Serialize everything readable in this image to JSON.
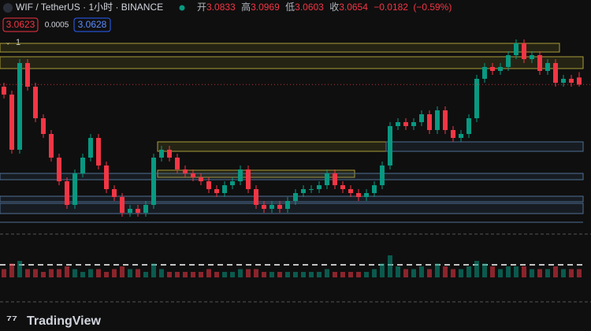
{
  "header": {
    "symbol": "WIF / TetherUS · 1小时 · BINANCE",
    "open_label": "开",
    "high_label": "高",
    "low_label": "低",
    "close_label": "收",
    "change": {
      "value": -0.0182,
      "label": "−0.0182"
    },
    "change_pct": {
      "value": -0.59,
      "label": "(−0.59%)"
    },
    "bid": 3.0623,
    "spread": 0.0005,
    "ask": 3.0628,
    "indicator_count": "1"
  },
  "footer": {
    "brand": "TradingView"
  },
  "chart_data": {
    "type": "candlestick",
    "ylim": [
      2.68,
      3.24
    ],
    "vlim": [
      0,
      10
    ],
    "up_color": "#089981",
    "down_color": "#f23645",
    "open": [
      3.06,
      3.04,
      2.9,
      3.12,
      3.06,
      2.98,
      2.94,
      2.88,
      2.82,
      2.76,
      2.84,
      2.88,
      2.93,
      2.86,
      2.8,
      2.78,
      2.74,
      2.75,
      2.74,
      2.76,
      2.88,
      2.9,
      2.88,
      2.85,
      2.84,
      2.83,
      2.82,
      2.8,
      2.79,
      2.81,
      2.82,
      2.85,
      2.8,
      2.76,
      2.75,
      2.76,
      2.75,
      2.77,
      2.79,
      2.8,
      2.8,
      2.81,
      2.84,
      2.81,
      2.8,
      2.79,
      2.78,
      2.79,
      2.81,
      2.86,
      2.96,
      2.97,
      2.96,
      2.97,
      2.99,
      2.95,
      3.0,
      2.95,
      2.93,
      2.94,
      2.98,
      3.08,
      3.11,
      3.1,
      3.11,
      3.14,
      3.17,
      3.13,
      3.14,
      3.1,
      3.12,
      3.07,
      3.08,
      3.0833
    ],
    "high": [
      3.07,
      3.05,
      3.13,
      3.13,
      3.07,
      2.99,
      2.95,
      2.89,
      2.83,
      2.85,
      2.89,
      2.94,
      2.94,
      2.87,
      2.81,
      2.79,
      2.76,
      2.76,
      2.77,
      2.89,
      2.91,
      2.91,
      2.89,
      2.86,
      2.85,
      2.84,
      2.83,
      2.81,
      2.82,
      2.83,
      2.86,
      2.86,
      2.81,
      2.77,
      2.77,
      2.77,
      2.78,
      2.8,
      2.81,
      2.81,
      2.82,
      2.85,
      2.85,
      2.82,
      2.81,
      2.8,
      2.8,
      2.82,
      2.87,
      2.97,
      2.98,
      2.98,
      2.98,
      3.0,
      3.0,
      3.01,
      3.01,
      2.96,
      2.95,
      2.99,
      3.09,
      3.12,
      3.12,
      3.12,
      3.15,
      3.18,
      3.18,
      3.15,
      3.15,
      3.13,
      3.13,
      3.09,
      3.09,
      3.0969
    ],
    "low": [
      3.03,
      2.89,
      2.89,
      3.05,
      2.97,
      2.93,
      2.87,
      2.81,
      2.75,
      2.75,
      2.83,
      2.87,
      2.85,
      2.79,
      2.77,
      2.73,
      2.73,
      2.73,
      2.73,
      2.75,
      2.87,
      2.87,
      2.84,
      2.83,
      2.82,
      2.81,
      2.79,
      2.78,
      2.78,
      2.8,
      2.81,
      2.79,
      2.75,
      2.74,
      2.74,
      2.74,
      2.74,
      2.76,
      2.78,
      2.79,
      2.79,
      2.8,
      2.8,
      2.79,
      2.78,
      2.77,
      2.77,
      2.78,
      2.8,
      2.85,
      2.95,
      2.95,
      2.95,
      2.96,
      2.94,
      2.94,
      2.94,
      2.92,
      2.92,
      2.93,
      2.97,
      3.07,
      3.09,
      3.09,
      3.1,
      3.13,
      3.12,
      3.12,
      3.09,
      3.09,
      3.06,
      3.06,
      3.06,
      3.0603
    ],
    "close": [
      3.04,
      2.9,
      3.12,
      3.06,
      2.98,
      2.94,
      2.88,
      2.82,
      2.76,
      2.84,
      2.88,
      2.93,
      2.86,
      2.8,
      2.78,
      2.74,
      2.75,
      2.74,
      2.76,
      2.88,
      2.9,
      2.88,
      2.85,
      2.84,
      2.83,
      2.82,
      2.8,
      2.79,
      2.81,
      2.82,
      2.85,
      2.8,
      2.76,
      2.75,
      2.76,
      2.75,
      2.77,
      2.79,
      2.8,
      2.8,
      2.81,
      2.84,
      2.81,
      2.8,
      2.79,
      2.78,
      2.79,
      2.81,
      2.86,
      2.96,
      2.97,
      2.96,
      2.97,
      2.99,
      2.95,
      3.0,
      2.95,
      2.93,
      2.94,
      2.98,
      3.08,
      3.11,
      3.1,
      3.11,
      3.14,
      3.17,
      3.13,
      3.14,
      3.1,
      3.12,
      3.07,
      3.08,
      3.07,
      3.0654
    ],
    "volume": [
      3,
      5,
      6,
      3,
      3,
      2,
      3,
      3,
      4,
      3,
      2,
      3,
      3,
      2,
      3,
      4,
      3,
      3,
      2,
      5,
      3,
      2,
      2,
      2,
      2,
      2,
      3,
      2,
      2,
      2,
      3,
      3,
      3,
      2,
      2,
      2,
      2,
      2,
      2,
      2,
      2,
      3,
      2,
      2,
      2,
      2,
      2,
      3,
      5,
      8,
      4,
      3,
      3,
      4,
      3,
      5,
      4,
      3,
      3,
      4,
      6,
      5,
      4,
      3,
      4,
      4,
      4,
      3,
      3,
      3,
      4,
      3,
      3,
      3
    ]
  }
}
